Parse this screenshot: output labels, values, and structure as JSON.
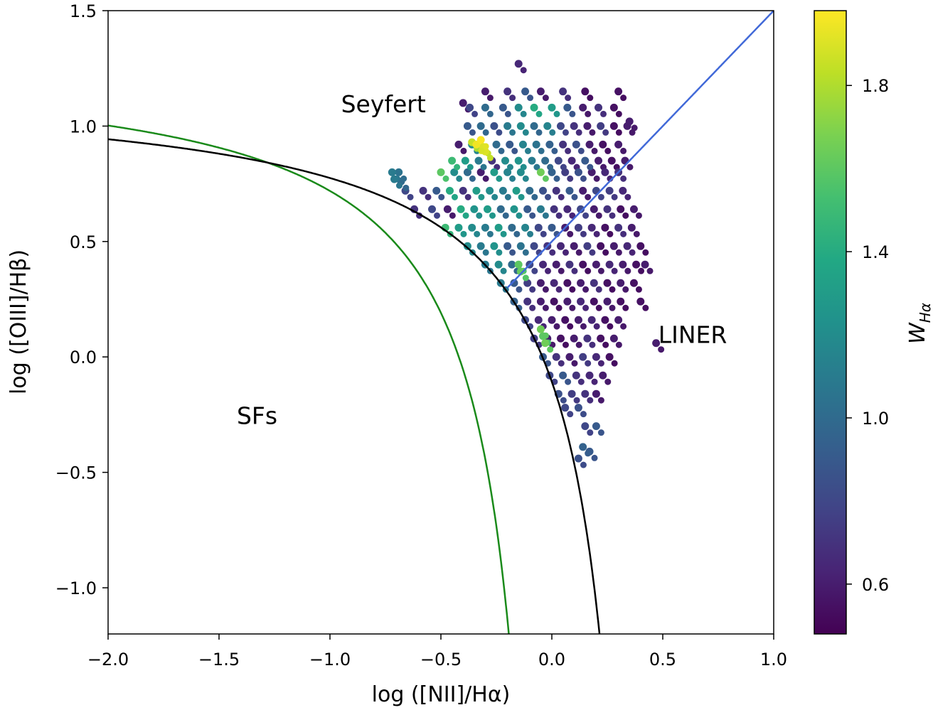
{
  "chart_data": {
    "type": "scatter",
    "xlabel": "log ([NII]/Hα)",
    "ylabel": "log ([OIII]/Hβ)",
    "xlim": [
      -2.0,
      1.0
    ],
    "ylim": [
      -1.2,
      1.5
    ],
    "xticks": [
      "−2.0",
      "−1.5",
      "−1.0",
      "−0.5",
      "0.0",
      "0.5",
      "1.0"
    ],
    "xtick_values": [
      -2.0,
      -1.5,
      -1.0,
      -0.5,
      0.0,
      0.5,
      1.0
    ],
    "yticks": [
      "−1.0",
      "−0.5",
      "0.0",
      "0.5",
      "1.0",
      "1.5"
    ],
    "ytick_values": [
      -1.0,
      -0.5,
      0.0,
      0.5,
      1.0,
      1.5
    ],
    "grid": false,
    "colorbar": {
      "label": "W",
      "label_sub": "Hα",
      "colormap": "viridis",
      "range": [
        0.48,
        1.98
      ],
      "ticks": [
        "0.6",
        "1.0",
        "1.4",
        "1.8"
      ],
      "tick_values": [
        0.6,
        1.0,
        1.4,
        1.8
      ]
    },
    "curves": [
      {
        "kind": "demarcation",
        "equation": "y = 0.61/(x-0.05) + 1.3",
        "color": "#1a8a1a"
      },
      {
        "kind": "demarcation",
        "equation": "y = 0.61/(x-0.47) + 1.19",
        "color": "#000000"
      },
      {
        "kind": "line",
        "equation": "y = x + 0.5",
        "x_range": [
          -0.2,
          1.0
        ],
        "color": "#4169d8"
      }
    ],
    "annotations": [
      {
        "text": "Seyfert",
        "x": -0.95,
        "y": 1.06
      },
      {
        "text": "SFs",
        "x": -1.42,
        "y": -0.29
      },
      {
        "text": "LINER",
        "x": 0.48,
        "y": 0.06
      }
    ],
    "points_note_columns": [
      "x",
      "y",
      "W_Hα"
    ],
    "points": [
      [
        -0.3,
        1.15,
        0.6
      ],
      [
        -0.2,
        1.15,
        0.7
      ],
      [
        -0.12,
        1.15,
        0.9
      ],
      [
        -0.05,
        1.15,
        0.6
      ],
      [
        0.05,
        1.15,
        0.7
      ],
      [
        0.15,
        1.15,
        0.55
      ],
      [
        -0.37,
        1.08,
        0.8
      ],
      [
        -0.3,
        1.08,
        1.0
      ],
      [
        -0.22,
        1.08,
        0.9
      ],
      [
        -0.15,
        1.08,
        1.2
      ],
      [
        -0.08,
        1.08,
        1.4
      ],
      [
        0.0,
        1.08,
        1.3
      ],
      [
        0.07,
        1.08,
        0.9
      ],
      [
        0.14,
        1.08,
        0.6
      ],
      [
        0.21,
        1.08,
        0.7
      ],
      [
        0.28,
        1.08,
        0.55
      ],
      [
        -0.38,
        1.0,
        0.9
      ],
      [
        -0.32,
        1.0,
        1.0
      ],
      [
        -0.26,
        1.0,
        0.85
      ],
      [
        -0.2,
        1.0,
        1.1
      ],
      [
        -0.14,
        1.0,
        1.2
      ],
      [
        -0.08,
        1.0,
        1.0
      ],
      [
        -0.02,
        1.0,
        1.15
      ],
      [
        0.04,
        1.0,
        0.8
      ],
      [
        0.1,
        1.0,
        0.7
      ],
      [
        0.16,
        1.0,
        0.6
      ],
      [
        0.22,
        1.0,
        0.75
      ],
      [
        0.28,
        1.0,
        0.55
      ],
      [
        0.34,
        1.0,
        0.6
      ],
      [
        -0.42,
        0.92,
        0.6
      ],
      [
        -0.36,
        0.92,
        1.2
      ],
      [
        -0.25,
        0.92,
        1.0
      ],
      [
        -0.19,
        0.92,
        0.9
      ],
      [
        -0.13,
        0.92,
        1.15
      ],
      [
        -0.07,
        0.92,
        1.05
      ],
      [
        -0.01,
        0.92,
        0.95
      ],
      [
        0.05,
        0.92,
        0.7
      ],
      [
        0.11,
        0.92,
        0.85
      ],
      [
        0.17,
        0.92,
        0.6
      ],
      [
        0.23,
        0.92,
        0.55
      ],
      [
        0.3,
        0.92,
        0.6
      ],
      [
        -0.34,
        0.92,
        1.95
      ],
      [
        -0.31,
        0.91,
        1.9
      ],
      [
        -0.32,
        0.94,
        1.97
      ],
      [
        -0.36,
        0.93,
        1.85
      ],
      [
        -0.3,
        0.89,
        1.9
      ],
      [
        -0.45,
        0.85,
        1.5
      ],
      [
        -0.39,
        0.85,
        1.3
      ],
      [
        -0.33,
        0.85,
        1.1
      ],
      [
        -0.27,
        0.85,
        0.7
      ],
      [
        -0.21,
        0.85,
        1.2
      ],
      [
        -0.15,
        0.85,
        1.25
      ],
      [
        -0.09,
        0.85,
        1.1
      ],
      [
        -0.03,
        0.85,
        1.0
      ],
      [
        0.03,
        0.85,
        0.8
      ],
      [
        0.09,
        0.85,
        0.65
      ],
      [
        0.15,
        0.85,
        0.9
      ],
      [
        0.21,
        0.85,
        0.6
      ],
      [
        0.27,
        0.85,
        0.55
      ],
      [
        0.33,
        0.85,
        0.6
      ],
      [
        -0.72,
        0.8,
        1.1
      ],
      [
        -0.69,
        0.8,
        1.05
      ],
      [
        -0.71,
        0.77,
        1.1
      ],
      [
        -0.68,
        0.76,
        1.0
      ],
      [
        -0.5,
        0.8,
        1.6
      ],
      [
        -0.44,
        0.8,
        1.2
      ],
      [
        -0.38,
        0.8,
        1.0
      ],
      [
        -0.32,
        0.8,
        0.6
      ],
      [
        -0.26,
        0.8,
        1.3
      ],
      [
        -0.2,
        0.8,
        1.15
      ],
      [
        -0.14,
        0.8,
        1.2
      ],
      [
        -0.05,
        0.8,
        1.65
      ],
      [
        0.0,
        0.8,
        0.95
      ],
      [
        0.06,
        0.8,
        0.75
      ],
      [
        0.12,
        0.8,
        0.85
      ],
      [
        0.18,
        0.8,
        0.6
      ],
      [
        0.24,
        0.8,
        0.65
      ],
      [
        0.3,
        0.8,
        0.7
      ],
      [
        -0.66,
        0.72,
        0.8
      ],
      [
        -0.58,
        0.72,
        0.7
      ],
      [
        -0.52,
        0.72,
        0.9
      ],
      [
        -0.46,
        0.72,
        1.4
      ],
      [
        -0.4,
        0.72,
        0.7
      ],
      [
        -0.34,
        0.72,
        1.3
      ],
      [
        -0.28,
        0.72,
        1.2
      ],
      [
        -0.22,
        0.72,
        1.1
      ],
      [
        -0.16,
        0.72,
        1.3
      ],
      [
        -0.1,
        0.72,
        1.0
      ],
      [
        -0.04,
        0.72,
        0.85
      ],
      [
        0.02,
        0.72,
        0.7
      ],
      [
        0.08,
        0.72,
        0.9
      ],
      [
        0.14,
        0.72,
        0.6
      ],
      [
        0.2,
        0.72,
        0.8
      ],
      [
        0.26,
        0.72,
        0.75
      ],
      [
        0.32,
        0.72,
        0.65
      ],
      [
        -0.62,
        0.64,
        0.7
      ],
      [
        -0.54,
        0.64,
        0.8
      ],
      [
        -0.47,
        0.64,
        0.6
      ],
      [
        -0.41,
        0.64,
        1.4
      ],
      [
        -0.35,
        0.64,
        1.25
      ],
      [
        -0.29,
        0.64,
        1.3
      ],
      [
        -0.23,
        0.64,
        1.0
      ],
      [
        -0.17,
        0.64,
        1.25
      ],
      [
        -0.11,
        0.64,
        0.9
      ],
      [
        -0.05,
        0.64,
        1.1
      ],
      [
        0.01,
        0.64,
        0.7
      ],
      [
        0.07,
        0.64,
        0.65
      ],
      [
        0.13,
        0.64,
        0.8
      ],
      [
        0.19,
        0.64,
        0.6
      ],
      [
        0.25,
        0.64,
        0.7
      ],
      [
        0.31,
        0.64,
        0.55
      ],
      [
        0.37,
        0.64,
        0.6
      ],
      [
        -0.48,
        0.56,
        1.5
      ],
      [
        -0.42,
        0.56,
        1.3
      ],
      [
        -0.36,
        0.56,
        1.2
      ],
      [
        -0.3,
        0.56,
        1.1
      ],
      [
        -0.24,
        0.56,
        1.3
      ],
      [
        -0.18,
        0.56,
        1.0
      ],
      [
        -0.12,
        0.56,
        1.15
      ],
      [
        -0.06,
        0.56,
        0.8
      ],
      [
        0.0,
        0.56,
        0.9
      ],
      [
        0.06,
        0.56,
        0.6
      ],
      [
        0.12,
        0.56,
        0.75
      ],
      [
        0.18,
        0.56,
        0.65
      ],
      [
        0.24,
        0.56,
        0.55
      ],
      [
        0.3,
        0.56,
        0.7
      ],
      [
        0.36,
        0.56,
        0.6
      ],
      [
        -0.38,
        0.48,
        1.2
      ],
      [
        -0.32,
        0.48,
        1.1
      ],
      [
        -0.26,
        0.48,
        1.25
      ],
      [
        -0.2,
        0.48,
        0.9
      ],
      [
        -0.14,
        0.48,
        1.05
      ],
      [
        -0.08,
        0.48,
        0.8
      ],
      [
        -0.02,
        0.48,
        0.7
      ],
      [
        0.04,
        0.48,
        0.65
      ],
      [
        0.1,
        0.48,
        0.6
      ],
      [
        0.16,
        0.48,
        0.75
      ],
      [
        0.22,
        0.48,
        0.55
      ],
      [
        0.28,
        0.48,
        0.6
      ],
      [
        0.34,
        0.48,
        0.65
      ],
      [
        0.4,
        0.48,
        0.55
      ],
      [
        -0.3,
        0.4,
        1.1
      ],
      [
        -0.24,
        0.4,
        1.2
      ],
      [
        -0.18,
        0.4,
        1.0
      ],
      [
        -0.15,
        0.4,
        1.6
      ],
      [
        -0.14,
        0.37,
        1.62
      ],
      [
        -0.1,
        0.4,
        0.8
      ],
      [
        -0.04,
        0.4,
        0.65
      ],
      [
        0.02,
        0.4,
        0.6
      ],
      [
        0.08,
        0.4,
        0.7
      ],
      [
        0.14,
        0.4,
        0.55
      ],
      [
        0.2,
        0.4,
        0.6
      ],
      [
        0.26,
        0.4,
        0.65
      ],
      [
        0.32,
        0.4,
        0.6
      ],
      [
        0.38,
        0.4,
        0.55
      ],
      [
        0.42,
        0.4,
        0.6
      ],
      [
        -0.23,
        0.32,
        1.1
      ],
      [
        -0.17,
        0.32,
        0.9
      ],
      [
        -0.11,
        0.32,
        0.75
      ],
      [
        -0.05,
        0.32,
        0.6
      ],
      [
        0.01,
        0.32,
        0.65
      ],
      [
        0.07,
        0.32,
        0.55
      ],
      [
        0.13,
        0.32,
        0.6
      ],
      [
        0.19,
        0.32,
        0.7
      ],
      [
        0.25,
        0.32,
        0.55
      ],
      [
        0.31,
        0.32,
        0.6
      ],
      [
        0.37,
        0.32,
        0.55
      ],
      [
        -0.17,
        0.24,
        0.95
      ],
      [
        -0.11,
        0.24,
        0.7
      ],
      [
        -0.05,
        0.24,
        0.6
      ],
      [
        0.01,
        0.24,
        0.55
      ],
      [
        0.07,
        0.24,
        0.6
      ],
      [
        0.13,
        0.24,
        0.65
      ],
      [
        0.19,
        0.24,
        0.55
      ],
      [
        0.25,
        0.24,
        0.6
      ],
      [
        0.31,
        0.24,
        0.55
      ],
      [
        0.4,
        0.24,
        0.55
      ],
      [
        -0.12,
        0.16,
        0.8
      ],
      [
        -0.06,
        0.16,
        0.65
      ],
      [
        0.0,
        0.16,
        0.6
      ],
      [
        0.06,
        0.16,
        0.55
      ],
      [
        0.12,
        0.16,
        0.6
      ],
      [
        0.18,
        0.16,
        0.65
      ],
      [
        0.24,
        0.16,
        0.55
      ],
      [
        0.3,
        0.16,
        0.6
      ],
      [
        -0.05,
        0.12,
        1.65
      ],
      [
        -0.04,
        0.09,
        1.6
      ],
      [
        -0.03,
        0.06,
        1.65
      ],
      [
        -0.08,
        0.08,
        0.75
      ],
      [
        -0.02,
        0.08,
        0.6
      ],
      [
        0.04,
        0.08,
        0.55
      ],
      [
        0.1,
        0.08,
        0.6
      ],
      [
        0.16,
        0.08,
        0.7
      ],
      [
        0.22,
        0.08,
        0.55
      ],
      [
        0.28,
        0.08,
        0.6
      ],
      [
        -0.04,
        0.0,
        0.9
      ],
      [
        0.02,
        0.0,
        0.7
      ],
      [
        0.08,
        0.0,
        0.6
      ],
      [
        0.14,
        0.0,
        0.75
      ],
      [
        0.2,
        0.0,
        0.65
      ],
      [
        0.26,
        0.0,
        0.55
      ],
      [
        -0.01,
        -0.08,
        0.8
      ],
      [
        0.05,
        -0.08,
        0.9
      ],
      [
        0.11,
        -0.08,
        0.7
      ],
      [
        0.17,
        -0.08,
        0.65
      ],
      [
        0.23,
        -0.08,
        0.6
      ],
      [
        0.03,
        -0.16,
        0.85
      ],
      [
        0.09,
        -0.16,
        0.75
      ],
      [
        0.15,
        -0.16,
        0.7
      ],
      [
        0.2,
        -0.16,
        0.6
      ],
      [
        0.06,
        -0.22,
        0.8
      ],
      [
        0.12,
        -0.22,
        0.85
      ],
      [
        -0.15,
        1.27,
        0.65
      ],
      [
        0.14,
        -0.39,
        0.95
      ],
      [
        0.17,
        -0.41,
        0.9
      ],
      [
        0.12,
        -0.44,
        0.85
      ],
      [
        0.2,
        -0.3,
        0.9
      ],
      [
        0.15,
        -0.3,
        0.8
      ],
      [
        0.35,
        1.02,
        0.6
      ],
      [
        0.3,
        1.15,
        0.55
      ],
      [
        0.47,
        0.06,
        0.6
      ],
      [
        -0.4,
        1.1,
        0.6
      ]
    ]
  }
}
